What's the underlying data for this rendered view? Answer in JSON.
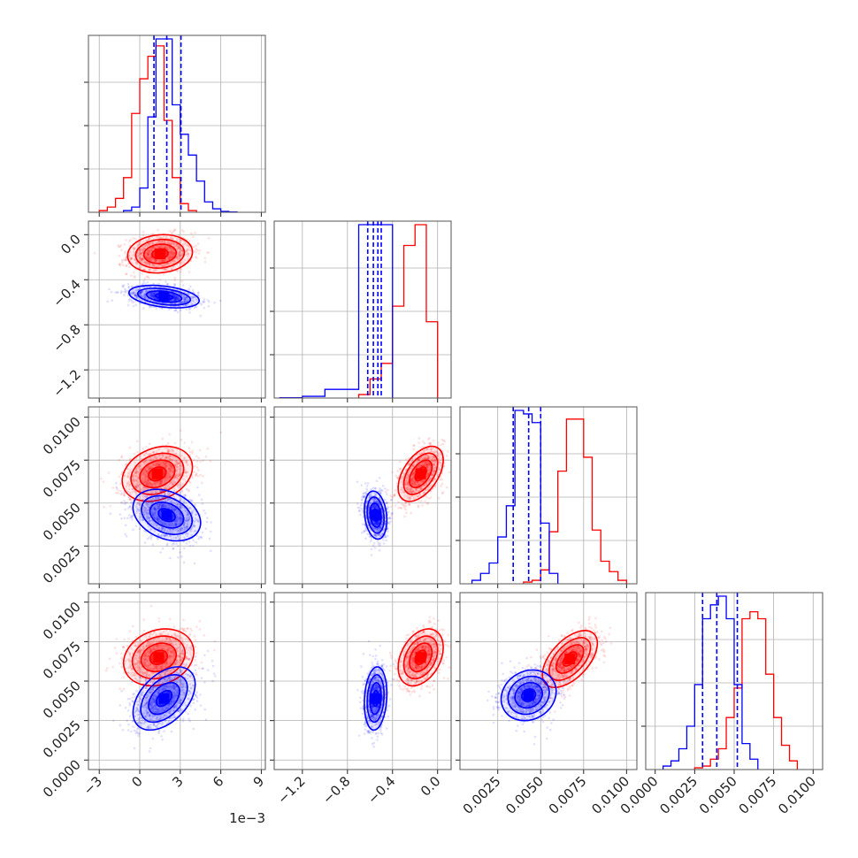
{
  "chart_data": {
    "type": "corner",
    "colors": {
      "red": "#ff0000",
      "blue": "#0000ff"
    },
    "grid": true,
    "params": [
      {
        "id": "p0",
        "range": [
          -3.8,
          9.3
        ],
        "ticks": [
          -3,
          0,
          3,
          6,
          9
        ],
        "tick_labels": [
          "−3",
          "0",
          "3",
          "6",
          "9"
        ],
        "offset_label": "1e−3"
      },
      {
        "id": "p1",
        "range": [
          -1.45,
          0.12
        ],
        "ticks": [
          -1.2,
          -0.8,
          -0.4,
          0.0
        ],
        "tick_labels": [
          "−1.2",
          "−0.8",
          "−0.4",
          "0.0"
        ]
      },
      {
        "id": "p2",
        "range": [
          0.0003,
          0.0106
        ],
        "ticks": [
          0.0025,
          0.005,
          0.0075,
          0.01
        ],
        "tick_labels": [
          "0.0025",
          "0.0050",
          "0.0075",
          "0.0100"
        ]
      },
      {
        "id": "p3",
        "range": [
          -0.0006,
          0.0106
        ],
        "ticks": [
          0.0,
          0.0025,
          0.005,
          0.0075,
          0.01
        ],
        "tick_labels": [
          "0.0000",
          "0.0025",
          "0.0050",
          "0.0075",
          "0.0100"
        ]
      }
    ],
    "histograms": [
      {
        "param": "p0",
        "red": {
          "edges": [
            -3.0,
            -2.4,
            -1.8,
            -1.2,
            -0.6,
            0.0,
            0.6,
            1.2,
            1.8,
            2.4,
            3.0,
            3.6,
            4.2
          ],
          "values": [
            0.01,
            0.03,
            0.08,
            0.2,
            0.57,
            0.77,
            0.9,
            0.96,
            0.53,
            0.2,
            0.05,
            0.01
          ]
        },
        "blue": {
          "edges": [
            -1.2,
            -0.6,
            0.0,
            0.6,
            1.2,
            1.8,
            2.4,
            3.0,
            3.6,
            4.2,
            4.8,
            5.4,
            6.0,
            6.6,
            7.2
          ],
          "values": [
            0.01,
            0.03,
            0.14,
            0.55,
            1.0,
            1.0,
            0.62,
            0.45,
            0.33,
            0.18,
            0.06,
            0.02,
            0.005,
            0.002
          ]
        },
        "blue_quantiles": [
          1.05,
          2.0,
          3.05
        ]
      },
      {
        "param": "p1",
        "red": {
          "edges": [
            -0.7,
            -0.6,
            -0.5,
            -0.4,
            -0.3,
            -0.2,
            -0.1,
            0.0
          ],
          "values": [
            0.02,
            0.11,
            0.2,
            0.53,
            0.88,
            1.0,
            0.44
          ]
        },
        "blue": {
          "edges": [
            -1.4,
            -1.2,
            -1.0,
            -0.8,
            -0.7,
            -0.6,
            -0.5,
            -0.4
          ],
          "values": [
            0.002,
            0.01,
            0.05,
            0.05,
            1.0,
            1.0,
            1.0
          ]
        },
        "blue_quantiles": [
          -0.62,
          -0.57,
          -0.53,
          -0.5
        ]
      },
      {
        "param": "p2",
        "red": {
          "edges": [
            0.004,
            0.0045,
            0.005,
            0.0055,
            0.006,
            0.0065,
            0.007,
            0.0075,
            0.008,
            0.0085,
            0.009,
            0.0095,
            0.01
          ],
          "values": [
            0.01,
            0.02,
            0.08,
            0.3,
            0.65,
            0.95,
            0.95,
            0.73,
            0.31,
            0.13,
            0.07,
            0.02
          ]
        },
        "blue": {
          "edges": [
            0.001,
            0.0015,
            0.002,
            0.0025,
            0.003,
            0.0035,
            0.004,
            0.0045,
            0.005,
            0.0055,
            0.006
          ],
          "values": [
            0.02,
            0.06,
            0.12,
            0.27,
            0.45,
            1.0,
            0.98,
            0.93,
            0.35,
            0.06
          ]
        },
        "blue_quantiles": [
          0.0034,
          0.0043,
          0.005
        ]
      },
      {
        "param": "p3",
        "red": {
          "edges": [
            0.0025,
            0.003,
            0.0035,
            0.004,
            0.0045,
            0.005,
            0.0055,
            0.006,
            0.0065,
            0.007,
            0.0075,
            0.008,
            0.0085,
            0.009
          ],
          "values": [
            0.01,
            0.02,
            0.06,
            0.12,
            0.3,
            0.47,
            0.87,
            0.91,
            0.87,
            0.55,
            0.3,
            0.14,
            0.05
          ]
        },
        "blue": {
          "edges": [
            0.0005,
            0.001,
            0.0015,
            0.002,
            0.0025,
            0.003,
            0.0035,
            0.004,
            0.0045,
            0.005,
            0.0055,
            0.006,
            0.0065
          ],
          "values": [
            0.02,
            0.05,
            0.12,
            0.25,
            0.49,
            0.87,
            0.95,
            1.0,
            0.87,
            0.49,
            0.15,
            0.06
          ]
        },
        "blue_quantiles": [
          0.003,
          0.0039,
          0.0052
        ]
      }
    ],
    "pairs": [
      {
        "x": "p0",
        "y": "p1",
        "red": {
          "mean": [
            1.5,
            -0.17
          ],
          "sd": [
            1.2,
            0.085
          ],
          "rho": 0.1
        },
        "blue": {
          "mean": [
            1.8,
            -0.55
          ],
          "sd": [
            1.3,
            0.05
          ],
          "rho": -0.35
        }
      },
      {
        "x": "p0",
        "y": "p2",
        "red": {
          "mean": [
            1.3,
            0.0067
          ],
          "sd": [
            1.3,
            0.0008
          ],
          "rho": 0.25
        },
        "blue": {
          "mean": [
            2.0,
            0.0043
          ],
          "sd": [
            1.25,
            0.00075
          ],
          "rho": -0.3
        }
      },
      {
        "x": "p1",
        "y": "p2",
        "red": {
          "mean": [
            -0.15,
            0.0067
          ],
          "sd": [
            0.1,
            0.0008
          ],
          "rho": 0.5
        },
        "blue": {
          "mean": [
            -0.55,
            0.0043
          ],
          "sd": [
            0.05,
            0.0007
          ],
          "rho": -0.2
        }
      },
      {
        "x": "p0",
        "y": "p3",
        "red": {
          "mean": [
            1.4,
            0.0065
          ],
          "sd": [
            1.3,
            0.0009
          ],
          "rho": 0.2
        },
        "blue": {
          "mean": [
            1.8,
            0.0039
          ],
          "sd": [
            1.15,
            0.001
          ],
          "rho": 0.45
        }
      },
      {
        "x": "p1",
        "y": "p3",
        "red": {
          "mean": [
            -0.15,
            0.0065
          ],
          "sd": [
            0.1,
            0.0009
          ],
          "rho": 0.35
        },
        "blue": {
          "mean": [
            -0.55,
            0.0039
          ],
          "sd": [
            0.05,
            0.001
          ],
          "rho": 0.15
        }
      },
      {
        "x": "p2",
        "y": "p3",
        "red": {
          "mean": [
            0.0067,
            0.0064
          ],
          "sd": [
            0.0008,
            0.0009
          ],
          "rho": 0.55
        },
        "blue": {
          "mean": [
            0.0043,
            0.0041
          ],
          "sd": [
            0.0008,
            0.0008
          ],
          "rho": 0.15
        }
      }
    ],
    "contour_levels_sigma": [
      0.5,
      1.0,
      1.5,
      2.0
    ]
  }
}
